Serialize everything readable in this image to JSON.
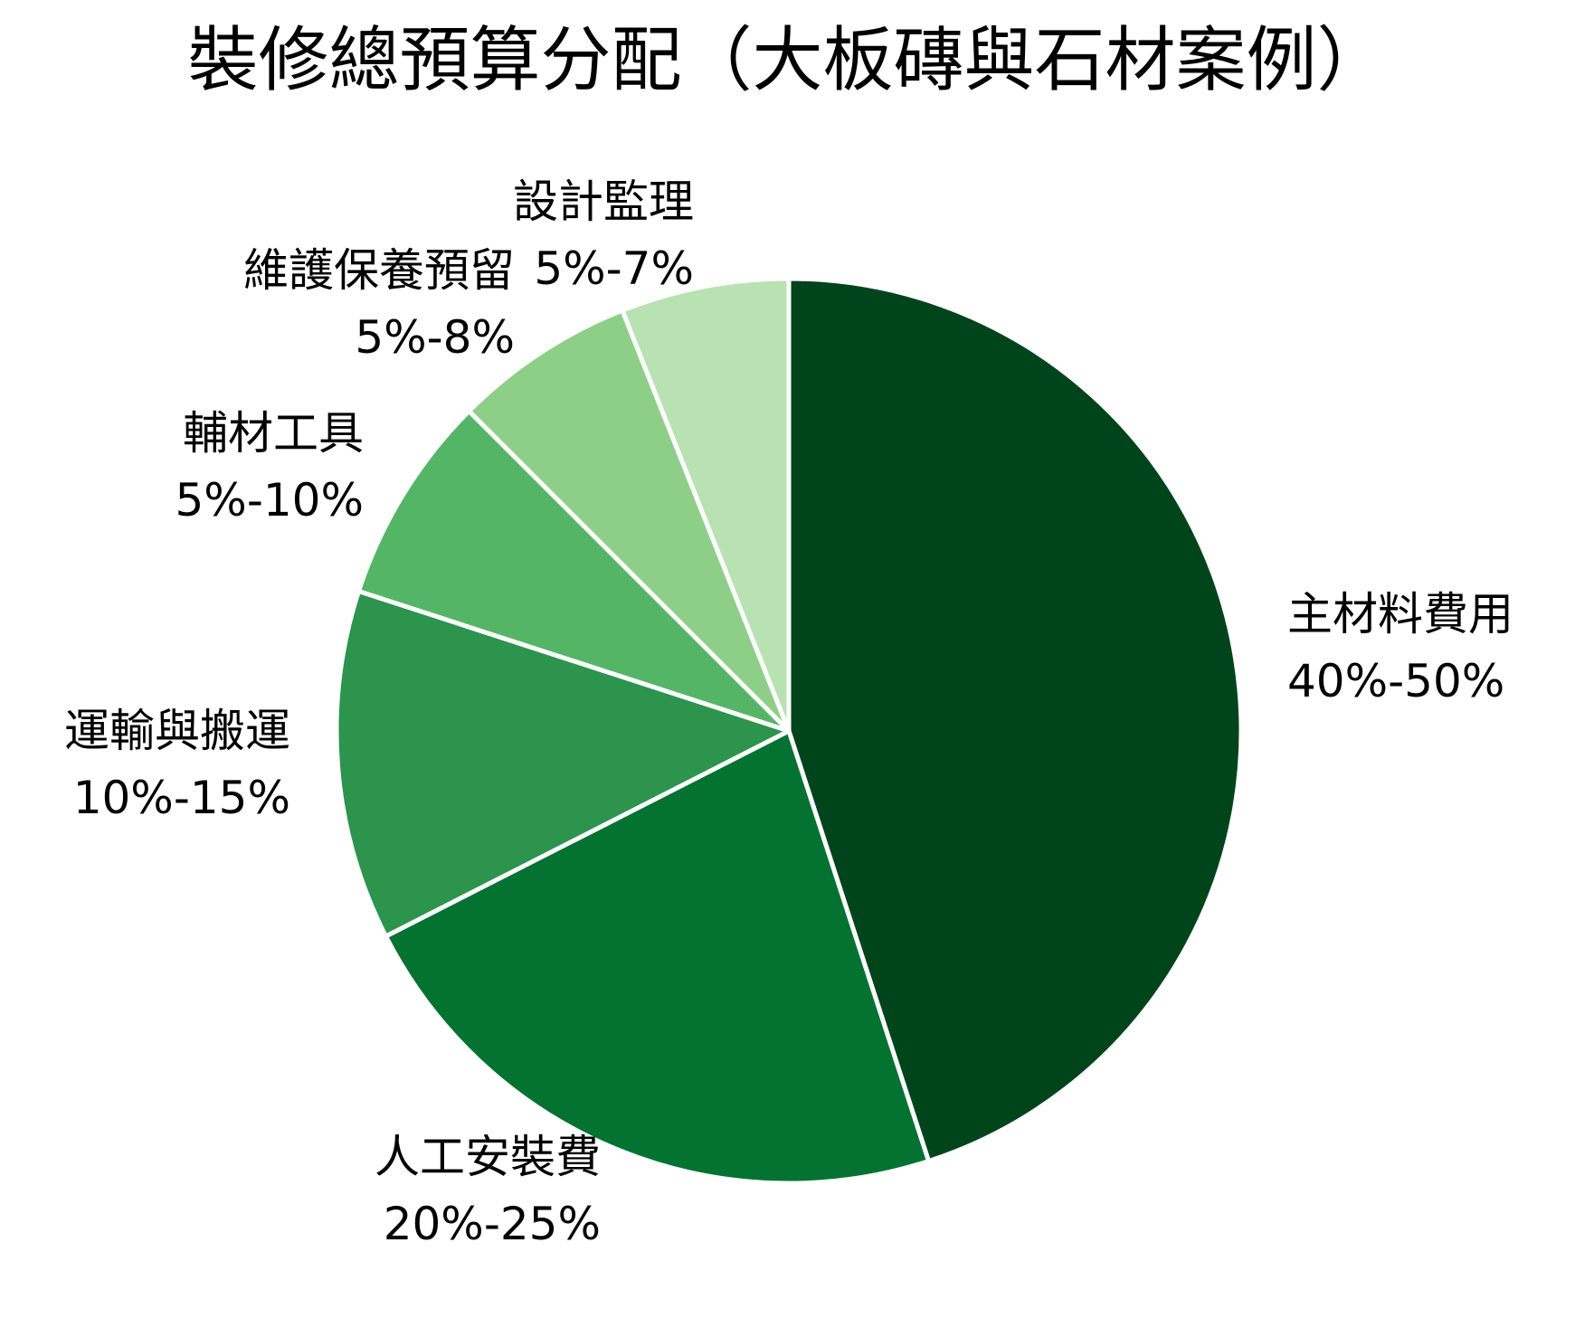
{
  "chart_data": {
    "type": "pie",
    "title": "裝修總預算分配（大板磚與石材案例）",
    "start_angle_deg": 90,
    "direction": "clockwise",
    "edge_color": "#ffffff",
    "legend": "none (labels placed beside slices)",
    "slices": [
      {
        "label": "主材料費用",
        "range": "40%-50%",
        "value": 45,
        "color": "#00441b"
      },
      {
        "label": "人工安裝費",
        "range": "20%-25%",
        "value": 22.5,
        "color": "#047230"
      },
      {
        "label": "運輸與搬運",
        "range": "10%-15%",
        "value": 12.5,
        "color": "#2c944c"
      },
      {
        "label": "輔材工具",
        "range": "5%-10%",
        "value": 7.5,
        "color": "#55b567"
      },
      {
        "label": "維護保養預留",
        "range": "5%-8%",
        "value": 6.5,
        "color": "#8ecf88"
      },
      {
        "label": "設計監理",
        "range": "5%-7%",
        "value": 6,
        "color": "#b8e2b2"
      }
    ]
  },
  "title": "裝修總預算分配（大板磚與石材案例）",
  "labels": [
    {
      "name": "主材料費用",
      "range": "40%-50%"
    },
    {
      "name": "人工安裝費",
      "range": "20%-25%"
    },
    {
      "name": "運輸與搬運",
      "range": "10%-15%"
    },
    {
      "name": "輔材工具",
      "range": "5%-10%"
    },
    {
      "name": "維護保養預留",
      "range": "5%-8%"
    },
    {
      "name": "設計監理",
      "range": "5%-7%"
    }
  ]
}
